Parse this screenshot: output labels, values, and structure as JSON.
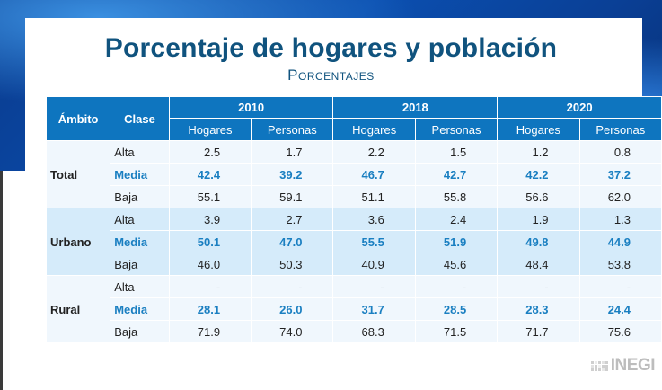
{
  "header": {
    "title": "Porcentaje de hogares y población",
    "subtitle": "Porcentajes"
  },
  "table": {
    "col_ambito": "Ámbito",
    "col_clase": "Clase",
    "years": [
      "2010",
      "2018",
      "2020"
    ],
    "sub_hogares": "Hogares",
    "sub_personas": "Personas",
    "groups": [
      {
        "ambito": "Total",
        "rows": [
          {
            "clase": "Alta",
            "values": [
              "2.5",
              "1.7",
              "2.2",
              "1.5",
              "1.2",
              "0.8"
            ]
          },
          {
            "clase": "Media",
            "values": [
              "42.4",
              "39.2",
              "46.7",
              "42.7",
              "42.2",
              "37.2"
            ]
          },
          {
            "clase": "Baja",
            "values": [
              "55.1",
              "59.1",
              "51.1",
              "55.8",
              "56.6",
              "62.0"
            ]
          }
        ]
      },
      {
        "ambito": "Urbano",
        "rows": [
          {
            "clase": "Alta",
            "values": [
              "3.9",
              "2.7",
              "3.6",
              "2.4",
              "1.9",
              "1.3"
            ]
          },
          {
            "clase": "Media",
            "values": [
              "50.1",
              "47.0",
              "55.5",
              "51.9",
              "49.8",
              "44.9"
            ]
          },
          {
            "clase": "Baja",
            "values": [
              "46.0",
              "50.3",
              "40.9",
              "45.6",
              "48.4",
              "53.8"
            ]
          }
        ]
      },
      {
        "ambito": "Rural",
        "rows": [
          {
            "clase": "Alta",
            "values": [
              "-",
              "-",
              "-",
              "-",
              "-",
              "-"
            ]
          },
          {
            "clase": "Media",
            "values": [
              "28.1",
              "26.0",
              "31.7",
              "28.5",
              "28.3",
              "24.4"
            ]
          },
          {
            "clase": "Baja",
            "values": [
              "71.9",
              "74.0",
              "68.3",
              "71.5",
              "71.7",
              "75.6"
            ]
          }
        ]
      }
    ]
  },
  "logo": {
    "text": "INEGI",
    "icon": "inegi-logo-icon"
  },
  "colors": {
    "title": "#10537e",
    "header_bg": "#0e75bf",
    "media_text": "#1a7fc1",
    "row_light": "#f0f7fd",
    "row_dark": "#d5ebfa"
  }
}
